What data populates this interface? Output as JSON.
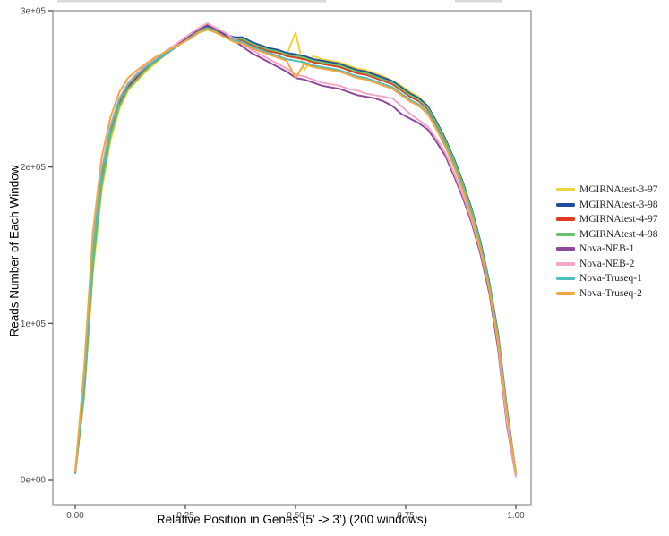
{
  "chart_data": {
    "type": "line",
    "title": "",
    "xlabel": "Relative Position in Genes (5’ -> 3’) (200 windows)",
    "ylabel": "Reads Number of Each Window",
    "legend_position": "right",
    "grid": false,
    "panel_border_color": "#8c8c8c",
    "tick_color": "#333333",
    "tick_label_color": "#4d4d4d",
    "x_axis": {
      "range": [
        0,
        1
      ],
      "ticks": [
        0,
        0.25,
        0.5,
        0.75,
        1
      ],
      "labels": [
        "0.00",
        "0.25",
        "0.50",
        "0.75",
        "1.00"
      ]
    },
    "y_axis": {
      "range": [
        0,
        300000
      ],
      "ticks": [
        0,
        100000,
        200000,
        300000
      ],
      "labels": [
        "0e+00",
        "1e+05",
        "2e+05",
        "3e+05"
      ]
    },
    "x": [
      0,
      0.02,
      0.04,
      0.06,
      0.08,
      0.1,
      0.12,
      0.14,
      0.16,
      0.18,
      0.2,
      0.22,
      0.24,
      0.26,
      0.28,
      0.3,
      0.32,
      0.34,
      0.36,
      0.38,
      0.4,
      0.42,
      0.44,
      0.46,
      0.48,
      0.5,
      0.52,
      0.54,
      0.56,
      0.58,
      0.6,
      0.62,
      0.64,
      0.66,
      0.68,
      0.7,
      0.72,
      0.74,
      0.76,
      0.78,
      0.8,
      0.82,
      0.84,
      0.86,
      0.88,
      0.9,
      0.92,
      0.94,
      0.96,
      0.98,
      1.0
    ],
    "series": [
      {
        "name": "MGIRNAtest-3-97",
        "color": "#EFD23E",
        "values": [
          4000,
          52000,
          132000,
          185000,
          217000,
          237000,
          249000,
          255000,
          261000,
          266000,
          271000,
          275000,
          279000,
          283000,
          287000,
          290000,
          288000,
          285000,
          282000,
          282000,
          279000,
          277000,
          275000,
          274000,
          272000,
          286000,
          262000,
          271000,
          269000,
          268000,
          267000,
          265000,
          263000,
          262000,
          260000,
          258000,
          255000,
          252000,
          248000,
          245000,
          238000,
          228000,
          217000,
          204000,
          189000,
          171000,
          150000,
          124000,
          91000,
          43000,
          4000
        ]
      },
      {
        "name": "MGIRNAtest-3-98",
        "color": "#1F4C9F",
        "values": [
          4000,
          55000,
          138000,
          190000,
          221000,
          240000,
          251000,
          257000,
          263000,
          268000,
          272000,
          276000,
          280000,
          284000,
          288000,
          290000,
          288000,
          285000,
          283000,
          283000,
          280000,
          278000,
          276000,
          275000,
          273000,
          272000,
          271000,
          269000,
          268000,
          267000,
          266000,
          264000,
          262000,
          261000,
          259000,
          257000,
          255000,
          251000,
          247000,
          244000,
          239000,
          229000,
          218000,
          205000,
          190000,
          173000,
          152000,
          126000,
          93000,
          45000,
          4000
        ]
      },
      {
        "name": "MGIRNAtest-4-97",
        "color": "#E23A20",
        "values": [
          4000,
          58000,
          143000,
          193000,
          223000,
          241000,
          252000,
          258000,
          263000,
          267000,
          271000,
          275000,
          279000,
          283000,
          286000,
          289000,
          287000,
          284000,
          282000,
          281000,
          278000,
          276000,
          274000,
          273000,
          271000,
          270000,
          269000,
          267000,
          266000,
          265000,
          264000,
          262000,
          260000,
          259000,
          257000,
          255000,
          253000,
          249000,
          245000,
          242000,
          237000,
          227000,
          216000,
          203000,
          188000,
          171000,
          150000,
          124000,
          91000,
          44000,
          4000
        ]
      },
      {
        "name": "MGIRNAtest-4-98",
        "color": "#6BBE6B",
        "values": [
          4000,
          54000,
          136000,
          188000,
          220000,
          239000,
          250000,
          256000,
          262000,
          267000,
          271000,
          275000,
          279000,
          283000,
          287000,
          289000,
          287000,
          284000,
          282000,
          282000,
          279000,
          277000,
          275000,
          274000,
          272000,
          271000,
          270000,
          268000,
          267000,
          266000,
          265000,
          263000,
          261000,
          260000,
          258000,
          256000,
          254000,
          250000,
          246000,
          243000,
          238000,
          228000,
          217000,
          204000,
          189000,
          172000,
          151000,
          125000,
          92000,
          44000,
          4000
        ]
      },
      {
        "name": "Nova-NEB-1",
        "color": "#8F489B",
        "values": [
          4000,
          61000,
          148000,
          197000,
          226000,
          243000,
          253000,
          259000,
          264000,
          268000,
          272000,
          276000,
          280000,
          284000,
          288000,
          291000,
          288000,
          284000,
          281000,
          277000,
          273000,
          270000,
          267000,
          264000,
          261000,
          257000,
          256000,
          254000,
          252000,
          251000,
          250000,
          248000,
          246000,
          245000,
          244000,
          242000,
          239000,
          234000,
          231000,
          228000,
          224000,
          216000,
          207000,
          194000,
          180000,
          164000,
          144000,
          119000,
          83000,
          34000,
          2000
        ]
      },
      {
        "name": "Nova-NEB-2",
        "color": "#F4A6C9",
        "values": [
          4000,
          63000,
          150000,
          199000,
          227000,
          244000,
          254000,
          260000,
          265000,
          269000,
          273000,
          277000,
          281000,
          285000,
          289000,
          292000,
          289000,
          286000,
          282000,
          279000,
          275000,
          272000,
          269000,
          266000,
          263000,
          259000,
          258000,
          256000,
          254000,
          253000,
          252000,
          250000,
          249000,
          247000,
          246000,
          245000,
          244000,
          239000,
          234000,
          230000,
          226000,
          218000,
          209000,
          196000,
          182000,
          166000,
          146000,
          122000,
          86000,
          36000,
          2000
        ]
      },
      {
        "name": "Nova-Truseq-1",
        "color": "#4EBEBF",
        "values": [
          4000,
          60000,
          146000,
          196000,
          225000,
          243000,
          253000,
          259000,
          264000,
          268000,
          272000,
          275000,
          279000,
          282000,
          286000,
          288000,
          286000,
          283000,
          281000,
          280000,
          277000,
          275000,
          273000,
          271000,
          269000,
          268000,
          267000,
          265000,
          264000,
          263000,
          262000,
          260000,
          258000,
          257000,
          255000,
          253000,
          251000,
          247000,
          243000,
          240000,
          235000,
          225000,
          214000,
          201000,
          186000,
          169000,
          148000,
          122000,
          89000,
          42000,
          4000
        ]
      },
      {
        "name": "Nova-Truseq-2",
        "color": "#F2A63F",
        "values": [
          5000,
          70000,
          158000,
          206000,
          232000,
          248000,
          257000,
          262000,
          266000,
          270000,
          273000,
          276000,
          279000,
          282000,
          286000,
          288000,
          286000,
          283000,
          280000,
          279000,
          276000,
          274000,
          272000,
          270000,
          268000,
          257000,
          266000,
          264000,
          263000,
          262000,
          261000,
          259000,
          257000,
          256000,
          254000,
          252000,
          250000,
          246000,
          242000,
          239000,
          234000,
          224000,
          213000,
          200000,
          185000,
          168000,
          147000,
          121000,
          88000,
          41000,
          4000
        ]
      }
    ]
  }
}
